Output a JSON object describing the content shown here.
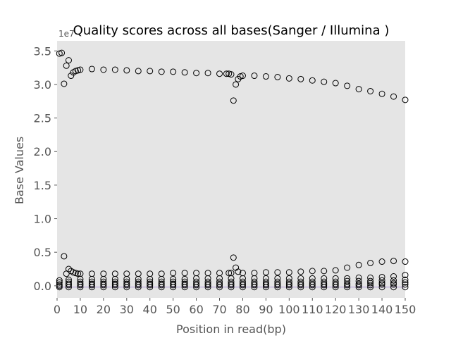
{
  "chart_data": {
    "type": "scatter",
    "title": "Quality scores across all bases(Sanger / Illumina )",
    "xlabel": "Position in read(bp)",
    "ylabel": "Base Values",
    "y_offset_label": "1e7",
    "xlim": [
      0,
      150
    ],
    "ylim": [
      -0.18,
      3.65
    ],
    "x_ticks": [
      0,
      10,
      20,
      30,
      40,
      50,
      60,
      70,
      80,
      90,
      100,
      110,
      120,
      130,
      140,
      150
    ],
    "y_ticks": [
      0.0,
      0.5,
      1.0,
      1.5,
      2.0,
      2.5,
      3.0,
      3.5
    ],
    "grid": false,
    "marker": "open-circle",
    "colors": {
      "background": "#e5e5e5",
      "marker_edge": "#000000",
      "marker_fill": "none",
      "tick_text": "#555555",
      "baseline": "#b39ddb"
    },
    "series": [
      {
        "x": [
          1,
          2,
          3,
          4,
          5,
          6,
          7,
          8,
          9,
          10,
          15,
          20,
          25,
          30,
          35,
          40,
          45,
          50,
          55,
          60,
          65,
          70,
          73,
          74,
          75,
          76,
          77,
          78,
          79,
          80,
          85,
          90,
          95,
          100,
          105,
          110,
          115,
          120,
          125,
          130,
          135,
          140,
          145,
          150
        ],
        "values": [
          3.46,
          3.47,
          3.01,
          3.28,
          3.36,
          3.13,
          3.18,
          3.2,
          3.21,
          3.22,
          3.23,
          3.22,
          3.22,
          3.21,
          3.2,
          3.2,
          3.19,
          3.19,
          3.18,
          3.17,
          3.17,
          3.16,
          3.16,
          3.16,
          3.15,
          2.76,
          3.0,
          3.08,
          3.12,
          3.13,
          3.13,
          3.12,
          3.11,
          3.09,
          3.08,
          3.06,
          3.04,
          3.02,
          2.98,
          2.93,
          2.9,
          2.86,
          2.82,
          2.77
        ]
      },
      {
        "x": [
          3,
          4,
          5,
          6,
          7,
          8,
          9,
          10,
          15,
          20,
          25,
          30,
          35,
          40,
          45,
          50,
          55,
          60,
          65,
          70,
          74,
          75,
          76,
          77,
          78,
          80,
          85,
          90,
          95,
          100,
          105,
          110,
          115,
          120,
          125,
          130,
          135,
          140,
          145,
          150
        ],
        "values": [
          0.44,
          0.18,
          0.25,
          0.22,
          0.2,
          0.19,
          0.18,
          0.18,
          0.18,
          0.18,
          0.18,
          0.18,
          0.18,
          0.18,
          0.18,
          0.19,
          0.19,
          0.19,
          0.19,
          0.19,
          0.19,
          0.19,
          0.42,
          0.27,
          0.21,
          0.19,
          0.19,
          0.2,
          0.2,
          0.2,
          0.21,
          0.22,
          0.22,
          0.23,
          0.27,
          0.31,
          0.34,
          0.36,
          0.37,
          0.36
        ]
      },
      {
        "x": [
          1,
          5,
          10,
          15,
          20,
          25,
          30,
          35,
          40,
          45,
          50,
          55,
          60,
          65,
          70,
          75,
          80,
          85,
          90,
          95,
          100,
          105,
          110,
          115,
          120,
          125,
          130,
          135,
          140,
          145,
          150
        ],
        "values": [
          0.08,
          0.09,
          0.1,
          0.1,
          0.1,
          0.1,
          0.1,
          0.1,
          0.1,
          0.1,
          0.1,
          0.1,
          0.11,
          0.11,
          0.11,
          0.11,
          0.11,
          0.11,
          0.11,
          0.11,
          0.11,
          0.11,
          0.11,
          0.11,
          0.11,
          0.11,
          0.12,
          0.12,
          0.13,
          0.14,
          0.16
        ]
      },
      {
        "x": [
          1,
          5,
          10,
          15,
          20,
          25,
          30,
          35,
          40,
          45,
          50,
          55,
          60,
          65,
          70,
          75,
          80,
          85,
          90,
          95,
          100,
          105,
          110,
          115,
          120,
          125,
          130,
          135,
          140,
          145,
          150
        ],
        "values": [
          0.05,
          0.06,
          0.06,
          0.06,
          0.06,
          0.06,
          0.06,
          0.06,
          0.06,
          0.06,
          0.06,
          0.06,
          0.06,
          0.06,
          0.06,
          0.06,
          0.06,
          0.06,
          0.06,
          0.06,
          0.06,
          0.06,
          0.06,
          0.06,
          0.06,
          0.07,
          0.07,
          0.07,
          0.08,
          0.08,
          0.09
        ]
      },
      {
        "x": [
          1,
          5,
          10,
          15,
          20,
          25,
          30,
          35,
          40,
          45,
          50,
          55,
          60,
          65,
          70,
          75,
          80,
          85,
          90,
          95,
          100,
          105,
          110,
          115,
          120,
          125,
          130,
          135,
          140,
          145,
          150
        ],
        "values": [
          0.02,
          0.03,
          0.03,
          0.03,
          0.03,
          0.03,
          0.03,
          0.03,
          0.03,
          0.03,
          0.03,
          0.03,
          0.03,
          0.03,
          0.03,
          0.03,
          0.03,
          0.03,
          0.03,
          0.03,
          0.03,
          0.03,
          0.03,
          0.03,
          0.03,
          0.03,
          0.03,
          0.04,
          0.04,
          0.04,
          0.05
        ]
      },
      {
        "x": [
          1,
          5,
          10,
          15,
          20,
          25,
          30,
          35,
          40,
          45,
          50,
          55,
          60,
          65,
          70,
          75,
          80,
          85,
          90,
          95,
          100,
          105,
          110,
          115,
          120,
          125,
          130,
          135,
          140,
          145,
          150
        ],
        "values": [
          0.0,
          0.01,
          0.01,
          0.01,
          0.01,
          0.01,
          0.01,
          0.01,
          0.01,
          0.01,
          0.01,
          0.01,
          0.01,
          0.01,
          0.01,
          0.01,
          0.01,
          0.01,
          0.01,
          0.01,
          0.01,
          0.01,
          0.01,
          0.01,
          0.01,
          0.01,
          0.01,
          0.01,
          0.02,
          0.02,
          0.02
        ]
      },
      {
        "x": [
          1,
          5,
          10,
          15,
          20,
          25,
          30,
          35,
          40,
          45,
          50,
          55,
          60,
          65,
          70,
          75,
          80,
          85,
          90,
          95,
          100,
          105,
          110,
          115,
          120,
          125,
          130,
          135,
          140,
          145,
          150
        ],
        "values": [
          -0.02,
          -0.02,
          -0.02,
          -0.02,
          -0.02,
          -0.02,
          -0.02,
          -0.02,
          -0.02,
          -0.02,
          -0.02,
          -0.02,
          -0.02,
          -0.02,
          -0.02,
          -0.02,
          -0.02,
          -0.02,
          -0.02,
          -0.02,
          -0.02,
          -0.02,
          -0.02,
          -0.02,
          -0.02,
          -0.02,
          -0.02,
          -0.02,
          -0.02,
          -0.02,
          -0.02
        ]
      }
    ]
  }
}
